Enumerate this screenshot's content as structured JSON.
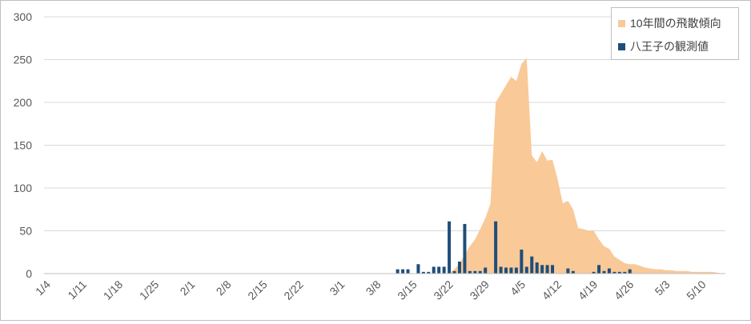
{
  "chart_data": {
    "type": "bar+area",
    "x_tick_labels": [
      "1/4",
      "1/11",
      "1/18",
      "1/25",
      "2/1",
      "2/8",
      "2/15",
      "2/22",
      "3/1",
      "3/8",
      "3/15",
      "3/22",
      "3/29",
      "4/5",
      "4/12",
      "4/19",
      "4/26",
      "5/3",
      "5/10"
    ],
    "x_start": "1/4",
    "x_end": "5/14",
    "ylim": [
      0,
      300
    ],
    "yticks": [
      0,
      50,
      100,
      150,
      200,
      250,
      300
    ],
    "grid": "horizontal",
    "legend_position": "top-right",
    "series": [
      {
        "name": "10年間の飛散傾向",
        "type": "area",
        "color": "#f9c998",
        "points": [
          [
            "3/22",
            0
          ],
          [
            "3/23",
            5
          ],
          [
            "3/24",
            12
          ],
          [
            "3/25",
            22
          ],
          [
            "3/26",
            32
          ],
          [
            "3/27",
            40
          ],
          [
            "3/28",
            52
          ],
          [
            "3/29",
            65
          ],
          [
            "3/30",
            82
          ],
          [
            "3/31",
            200
          ],
          [
            "4/1",
            210
          ],
          [
            "4/2",
            220
          ],
          [
            "4/3",
            230
          ],
          [
            "4/4",
            225
          ],
          [
            "4/5",
            245
          ],
          [
            "4/6",
            252
          ],
          [
            "4/7",
            138
          ],
          [
            "4/8",
            130
          ],
          [
            "4/9",
            143
          ],
          [
            "4/10",
            132
          ],
          [
            "4/11",
            133
          ],
          [
            "4/12",
            110
          ],
          [
            "4/13",
            82
          ],
          [
            "4/14",
            85
          ],
          [
            "4/15",
            75
          ],
          [
            "4/16",
            53
          ],
          [
            "4/17",
            52
          ],
          [
            "4/18",
            50
          ],
          [
            "4/19",
            50
          ],
          [
            "4/20",
            40
          ],
          [
            "4/21",
            32
          ],
          [
            "4/22",
            29
          ],
          [
            "4/23",
            20
          ],
          [
            "4/24",
            16
          ],
          [
            "4/25",
            12
          ],
          [
            "4/26",
            11
          ],
          [
            "4/27",
            11
          ],
          [
            "4/28",
            9
          ],
          [
            "4/29",
            7
          ],
          [
            "4/30",
            6
          ],
          [
            "5/1",
            5
          ],
          [
            "5/2",
            5
          ],
          [
            "5/3",
            4
          ],
          [
            "5/4",
            4
          ],
          [
            "5/5",
            3
          ],
          [
            "5/6",
            3
          ],
          [
            "5/7",
            3
          ],
          [
            "5/8",
            2
          ],
          [
            "5/9",
            2
          ],
          [
            "5/10",
            2
          ],
          [
            "5/11",
            2
          ],
          [
            "5/12",
            2
          ],
          [
            "5/13",
            1
          ],
          [
            "5/14",
            0
          ]
        ]
      },
      {
        "name": "八王子の観測値",
        "type": "bar",
        "color": "#1f4e79",
        "points": [
          [
            "3/12",
            5
          ],
          [
            "3/13",
            5
          ],
          [
            "3/14",
            5
          ],
          [
            "3/16",
            11
          ],
          [
            "3/17",
            2
          ],
          [
            "3/18",
            2
          ],
          [
            "3/19",
            8
          ],
          [
            "3/20",
            8
          ],
          [
            "3/21",
            8
          ],
          [
            "3/22",
            61
          ],
          [
            "3/23",
            3
          ],
          [
            "3/24",
            14
          ],
          [
            "3/25",
            58
          ],
          [
            "3/26",
            3
          ],
          [
            "3/27",
            3
          ],
          [
            "3/28",
            3
          ],
          [
            "3/29",
            7
          ],
          [
            "3/31",
            61
          ],
          [
            "4/1",
            8
          ],
          [
            "4/2",
            7
          ],
          [
            "4/3",
            7
          ],
          [
            "4/4",
            7
          ],
          [
            "4/5",
            28
          ],
          [
            "4/6",
            8
          ],
          [
            "4/7",
            20
          ],
          [
            "4/8",
            13
          ],
          [
            "4/9",
            10
          ],
          [
            "4/10",
            10
          ],
          [
            "4/11",
            10
          ],
          [
            "4/14",
            6
          ],
          [
            "4/15",
            3
          ],
          [
            "4/19",
            2
          ],
          [
            "4/20",
            10
          ],
          [
            "4/21",
            3
          ],
          [
            "4/22",
            6
          ],
          [
            "4/23",
            2
          ],
          [
            "4/24",
            2
          ],
          [
            "4/25",
            2
          ],
          [
            "4/26",
            5
          ]
        ]
      }
    ]
  }
}
